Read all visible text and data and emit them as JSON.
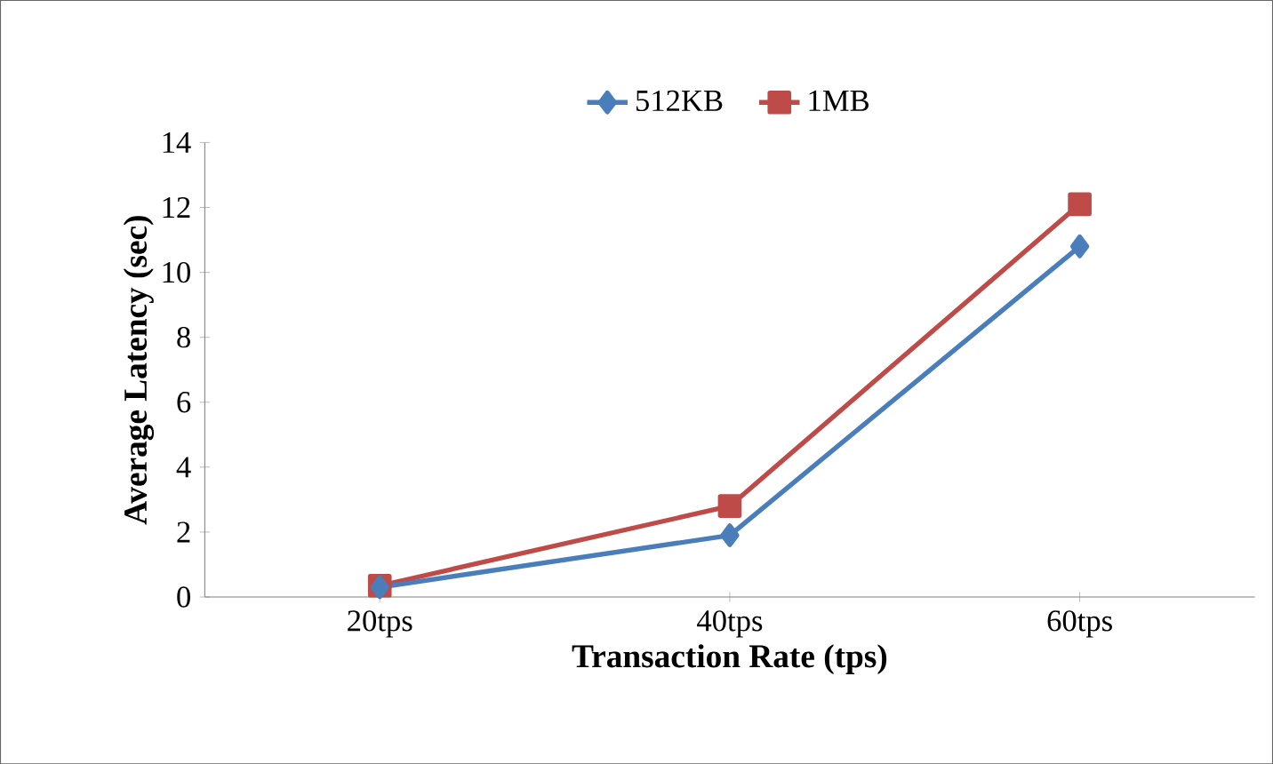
{
  "chart_data": {
    "type": "line",
    "xlabel": "Transaction Rate (tps)",
    "ylabel": "Average Latency (sec)",
    "categories": [
      "20tps",
      "40tps",
      "60tps"
    ],
    "series": [
      {
        "name": "512KB",
        "color": "#4a7ebb",
        "marker": "diamond",
        "values": [
          0.3,
          1.9,
          10.8
        ]
      },
      {
        "name": "1MB",
        "color": "#be4b48",
        "marker": "square",
        "values": [
          0.35,
          2.8,
          12.1
        ]
      }
    ],
    "ylim": [
      0,
      14
    ],
    "yticks": [
      0,
      2,
      4,
      6,
      8,
      10,
      12,
      14
    ],
    "grid": false,
    "legend": "top",
    "line_style": "solid"
  }
}
